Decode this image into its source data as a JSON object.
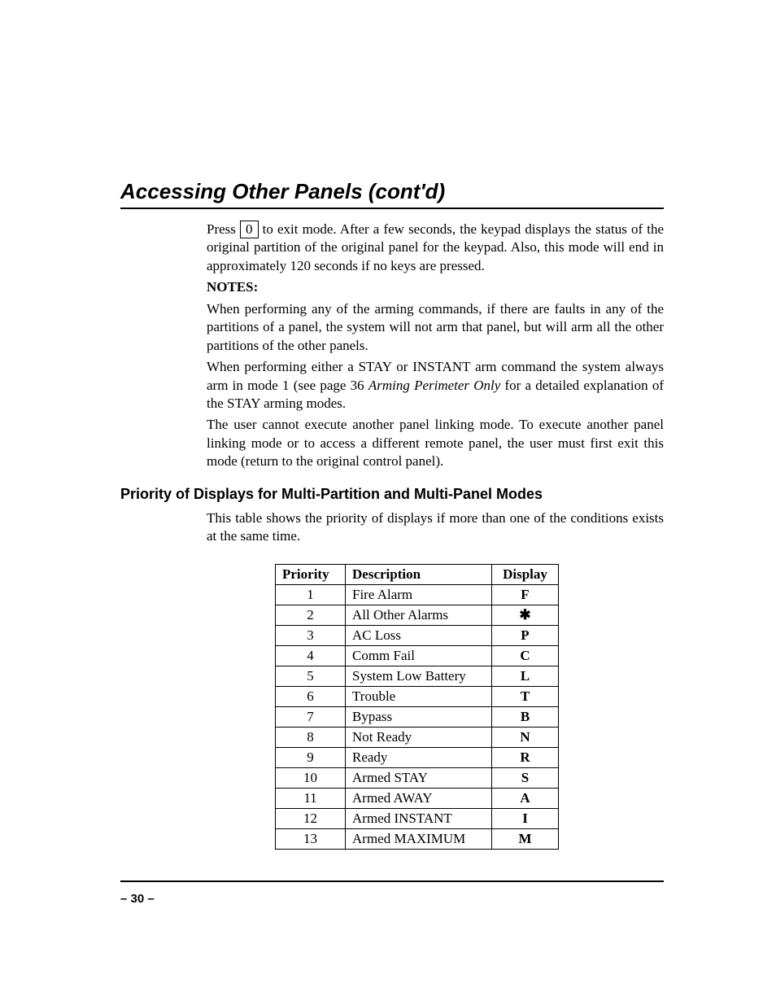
{
  "title": "Accessing Other Panels (cont'd)",
  "body": {
    "press_word": "Press",
    "keycap": "0",
    "after_key": " to exit mode. After a few seconds, the keypad displays the status of the original partition of the original panel for the keypad. Also, this mode will end in approximately 120 seconds if no keys are pressed.",
    "notes_label": "NOTES:",
    "note1": "When performing any of the arming commands, if there are faults in any of the partitions of a panel, the system will not arm that panel, but will arm all the other partitions of the other panels.",
    "note2_a": "When performing either a STAY or INSTANT arm command the system always arm in mode 1 (see page 36 ",
    "note2_ref": "Arming Perimeter Only",
    "note2_b": " for a detailed explanation of the STAY arming modes.",
    "note3": "The user cannot execute another panel linking mode. To execute another panel linking mode or to access a different remote panel, the user must first exit this mode (return to the original control panel)."
  },
  "section_heading": "Priority of Displays for Multi-Partition and Multi-Panel Modes",
  "section_intro": "This table shows the priority of displays if more than one of the conditions exists at the same time.",
  "table": {
    "columns": [
      "Priority",
      "Description",
      "Display"
    ],
    "rows": [
      {
        "priority": "1",
        "description": "Fire Alarm",
        "display": "F"
      },
      {
        "priority": "2",
        "description": "All Other Alarms",
        "display": "✱"
      },
      {
        "priority": "3",
        "description": "AC Loss",
        "display": "P"
      },
      {
        "priority": "4",
        "description": "Comm Fail",
        "display": "C"
      },
      {
        "priority": "5",
        "description": "System Low Battery",
        "display": "L"
      },
      {
        "priority": "6",
        "description": "Trouble",
        "display": "T"
      },
      {
        "priority": "7",
        "description": "Bypass",
        "display": "B"
      },
      {
        "priority": "8",
        "description": "Not Ready",
        "display": "N"
      },
      {
        "priority": "9",
        "description": "Ready",
        "display": "R"
      },
      {
        "priority": "10",
        "description": "Armed STAY",
        "display": "S"
      },
      {
        "priority": "11",
        "description": "Armed AWAY",
        "display": "A"
      },
      {
        "priority": "12",
        "description": "Armed INSTANT",
        "display": "I"
      },
      {
        "priority": "13",
        "description": "Armed MAXIMUM",
        "display": "M"
      }
    ]
  },
  "page_number": "– 30 –"
}
